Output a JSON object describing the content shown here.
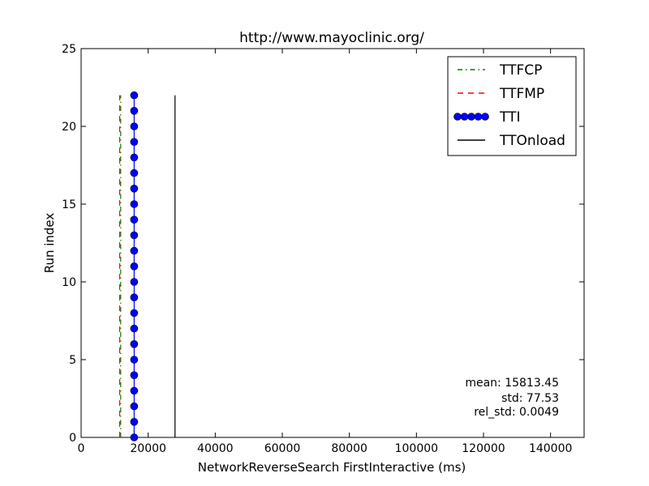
{
  "chart_data": {
    "type": "line",
    "title": "http://www.mayoclinic.org/",
    "xlabel": "NetworkReverseSearch FirstInteractive (ms)",
    "ylabel": "Run index",
    "xlim": [
      0,
      150000
    ],
    "ylim": [
      0,
      25
    ],
    "xticks": [
      0,
      20000,
      40000,
      60000,
      80000,
      100000,
      120000,
      140000
    ],
    "yticks": [
      0,
      5,
      10,
      15,
      20,
      25
    ],
    "grid": false,
    "legend_position": "top-right",
    "series": [
      {
        "name": "TTFCP",
        "color": "#008000",
        "style": "dash-dot",
        "x": [
          11800,
          11800,
          11800,
          11800,
          11800,
          11800,
          11800,
          11800,
          11800,
          11800,
          11800,
          11800,
          11800,
          11800,
          11800,
          11800,
          11800,
          11800,
          11800,
          11800,
          11800,
          11800,
          11800
        ],
        "y": [
          0,
          1,
          2,
          3,
          4,
          5,
          6,
          7,
          8,
          9,
          10,
          11,
          12,
          13,
          14,
          15,
          16,
          17,
          18,
          19,
          20,
          21,
          22
        ]
      },
      {
        "name": "TTFMP",
        "color": "#ff0000",
        "style": "dashed",
        "x": [
          11500,
          11500,
          11500,
          11500,
          11500,
          11500,
          11500,
          11500,
          11500,
          11500,
          11500,
          11500,
          11500,
          11500,
          11500,
          11500,
          11500,
          11500,
          11500,
          11500,
          11500,
          11500,
          11500
        ],
        "y": [
          0,
          1,
          2,
          3,
          4,
          5,
          6,
          7,
          8,
          9,
          10,
          11,
          12,
          13,
          14,
          15,
          16,
          17,
          18,
          19,
          20,
          21,
          22
        ]
      },
      {
        "name": "TTI",
        "color": "#0000ff",
        "style": "solid-markers",
        "x": [
          15813,
          15813,
          15813,
          15813,
          15813,
          15813,
          15813,
          15813,
          15813,
          15813,
          15813,
          15813,
          15813,
          15813,
          15813,
          15813,
          15813,
          15813,
          15813,
          15813,
          15813,
          15813,
          15813
        ],
        "y": [
          0,
          1,
          2,
          3,
          4,
          5,
          6,
          7,
          8,
          9,
          10,
          11,
          12,
          13,
          14,
          15,
          16,
          17,
          18,
          19,
          20,
          21,
          22
        ]
      },
      {
        "name": "TTOnload",
        "color": "#000000",
        "style": "solid",
        "x": [
          28000,
          28000,
          28000,
          28000,
          28000,
          28000,
          28000,
          28000,
          28000,
          28000,
          28000,
          28000,
          28000,
          28000,
          28000,
          28000,
          28000,
          28000,
          28000,
          28000,
          28000,
          28000,
          28000
        ],
        "y": [
          0,
          1,
          2,
          3,
          4,
          5,
          6,
          7,
          8,
          9,
          10,
          11,
          12,
          13,
          14,
          15,
          16,
          17,
          18,
          19,
          20,
          21,
          22
        ]
      }
    ],
    "annotations": [
      "mean: 15813.45",
      "std: 77.53",
      "rel_std: 0.0049"
    ]
  }
}
